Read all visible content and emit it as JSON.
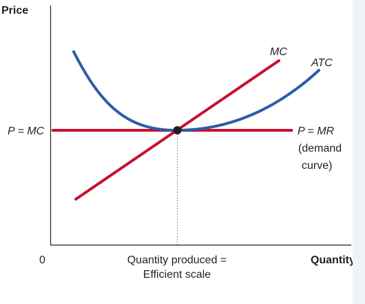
{
  "diagram": {
    "y_axis_label": "Price",
    "x_axis_label": "Quantity",
    "origin_label": "0",
    "price_label": "P = MC",
    "curves": {
      "mc": {
        "label": "MC",
        "color": "#c8102e"
      },
      "atc": {
        "label": "ATC",
        "color": "#2a5caa"
      },
      "demand": {
        "label_line1": "P = MR",
        "label_line2": "(demand",
        "label_line3": "curve)",
        "color": "#c8102e"
      }
    },
    "equilibrium_point": {
      "color": "#231f20"
    },
    "quantity_label_line1": "Quantity produced =",
    "quantity_label_line2": "Efficient scale"
  },
  "side_panel": {
    "color": "#eef4fa"
  }
}
